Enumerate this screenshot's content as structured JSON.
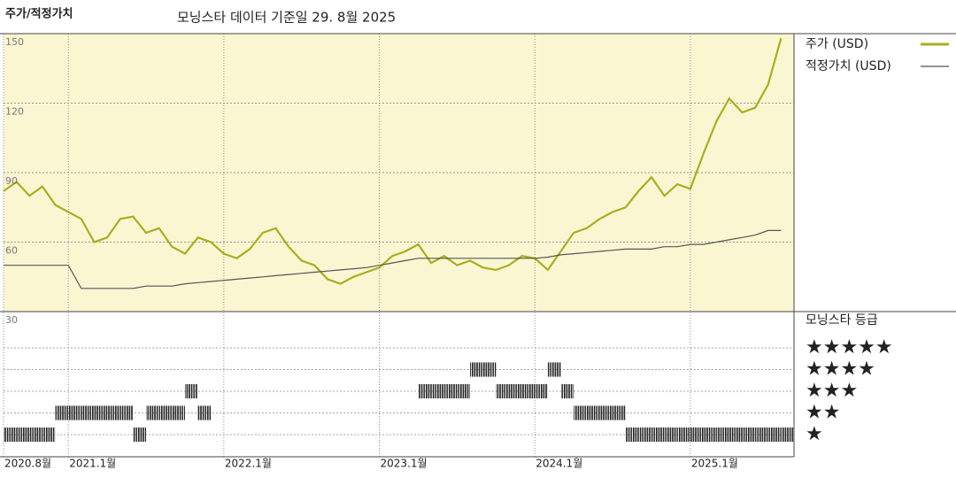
{
  "chart_data": [
    {
      "type": "line",
      "title": "주가/적정가치",
      "subtitle": "모닝스타 데이터 기준일 29. 8월 2025",
      "x": [
        "2020-08",
        "2020-09",
        "2020-10",
        "2020-11",
        "2020-12",
        "2021-01",
        "2021-02",
        "2021-03",
        "2021-04",
        "2021-05",
        "2021-06",
        "2021-07",
        "2021-08",
        "2021-09",
        "2021-10",
        "2021-11",
        "2021-12",
        "2022-01",
        "2022-02",
        "2022-03",
        "2022-04",
        "2022-05",
        "2022-06",
        "2022-07",
        "2022-08",
        "2022-09",
        "2022-10",
        "2022-11",
        "2022-12",
        "2023-01",
        "2023-02",
        "2023-03",
        "2023-04",
        "2023-05",
        "2023-06",
        "2023-07",
        "2023-08",
        "2023-09",
        "2023-10",
        "2023-11",
        "2023-12",
        "2024-01",
        "2024-02",
        "2024-03",
        "2024-04",
        "2024-05",
        "2024-06",
        "2024-07",
        "2024-08",
        "2024-09",
        "2024-10",
        "2024-11",
        "2024-12",
        "2025-01",
        "2025-02",
        "2025-03",
        "2025-04",
        "2025-05",
        "2025-06",
        "2025-07",
        "2025-08"
      ],
      "series": [
        {
          "name": "주가 (USD)",
          "color": "#a9ae1e",
          "values": [
            82,
            86,
            80,
            84,
            76,
            73,
            70,
            60,
            62,
            70,
            71,
            64,
            66,
            58,
            55,
            62,
            60,
            55,
            53,
            57,
            64,
            66,
            58,
            52,
            50,
            44,
            42,
            45,
            47,
            49,
            54,
            56,
            59,
            51,
            54,
            50,
            52,
            49,
            48,
            50,
            54,
            53,
            48,
            56,
            64,
            66,
            70,
            73,
            75,
            82,
            88,
            80,
            85,
            83,
            98,
            112,
            122,
            116,
            118,
            128,
            148
          ]
        },
        {
          "name": "적정가치 (USD)",
          "color": "#555555",
          "values": [
            50,
            50,
            50,
            50,
            50,
            50,
            40,
            40,
            40,
            40,
            40,
            41,
            41,
            41,
            42,
            42.5,
            43,
            43.5,
            44,
            44.5,
            45,
            45.5,
            46,
            46.5,
            47,
            47.5,
            48,
            48.5,
            49,
            50,
            51,
            52,
            53,
            53,
            53,
            53,
            53,
            53,
            53,
            53,
            53,
            53,
            53.5,
            54.5,
            55,
            55.5,
            56,
            56.5,
            57,
            57,
            57,
            58,
            58,
            59,
            59,
            60,
            61,
            62,
            63,
            65,
            65
          ]
        }
      ],
      "xlim": [
        "2020-08",
        "2025-09"
      ],
      "ylim": [
        30,
        150
      ],
      "yticks": [
        30,
        60,
        90,
        120,
        150
      ],
      "grid": true,
      "legend": "right"
    },
    {
      "type": "rating",
      "title": "모닝스타 등급",
      "x": [
        "2020-08",
        "2020-09",
        "2020-10",
        "2020-11",
        "2020-12",
        "2021-01",
        "2021-02",
        "2021-03",
        "2021-04",
        "2021-05",
        "2021-06",
        "2021-07",
        "2021-08",
        "2021-09",
        "2021-10",
        "2021-11",
        "2021-12",
        "2022-01",
        "2022-02",
        "2022-03",
        "2022-04",
        "2022-05",
        "2022-06",
        "2022-07",
        "2022-08",
        "2022-09",
        "2022-10",
        "2022-11",
        "2022-12",
        "2023-01",
        "2023-02",
        "2023-03",
        "2023-04",
        "2023-05",
        "2023-06",
        "2023-07",
        "2023-08",
        "2023-09",
        "2023-10",
        "2023-11",
        "2023-12",
        "2024-01",
        "2024-02",
        "2024-03",
        "2024-04",
        "2024-05",
        "2024-06",
        "2024-07",
        "2024-08",
        "2024-09",
        "2024-10",
        "2024-11",
        "2024-12",
        "2025-01",
        "2025-02",
        "2025-03",
        "2025-04",
        "2025-05",
        "2025-06",
        "2025-07",
        "2025-08"
      ],
      "values": [
        1,
        1,
        1,
        1,
        2,
        2,
        2,
        2,
        2,
        2,
        1,
        2,
        2,
        2,
        3,
        2,
        null,
        null,
        null,
        null,
        null,
        null,
        null,
        null,
        null,
        null,
        null,
        null,
        null,
        null,
        null,
        null,
        3,
        3,
        3,
        3,
        4,
        4,
        3,
        3,
        3,
        3,
        4,
        3,
        2,
        2,
        2,
        2,
        1,
        1,
        1,
        1,
        1,
        1,
        1,
        1,
        1,
        1,
        1,
        1,
        1
      ],
      "color": "#222222",
      "xlim": [
        "2020-08",
        "2025-09"
      ],
      "ylim": [
        0,
        6
      ],
      "yticks": [
        {
          "value": 5,
          "label": "★★★★★"
        },
        {
          "value": 4,
          "label": "★★★★"
        },
        {
          "value": 3,
          "label": "★★★"
        },
        {
          "value": 2,
          "label": "★★"
        },
        {
          "value": 1,
          "label": "★"
        }
      ],
      "xticks": [
        {
          "value": "2020-08",
          "label": "2020.8월"
        },
        {
          "value": "2021-01",
          "label": "2021.1월"
        },
        {
          "value": "2022-01",
          "label": "2022.1월"
        },
        {
          "value": "2023-01",
          "label": "2023.1월"
        },
        {
          "value": "2024-01",
          "label": "2024.1월"
        },
        {
          "value": "2025-01",
          "label": "2025.1월"
        }
      ],
      "grid": true
    }
  ]
}
